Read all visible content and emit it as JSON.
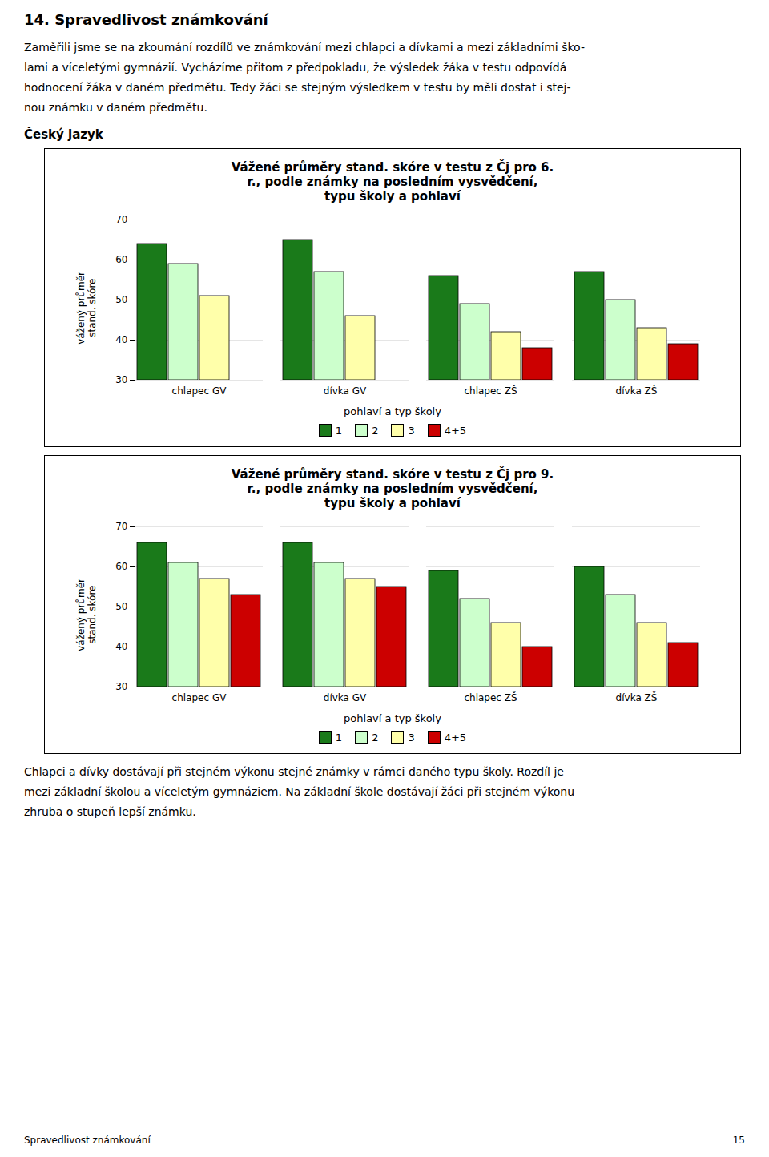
{
  "header_title": "14.  Spravedlivost známkování",
  "header_lines": [
    "Zaměřili jsme se na zkoumání rozdílů ve známkování mezi chlapci a dívkami a mezi základními ško-",
    "lami a víceletými gymnázií. Vycházíme přitom z předpokladu, že výsledek žáka v testu odpovídá",
    "hodnocení žáka v daném předmětu. Tedy žáci se stejným výsledkem v testu by měli dostat i stej-",
    "nou známku v daném předmětu."
  ],
  "section_label": "Český jazyk",
  "footer_lines": [
    "Chlapci a dívky dostávají při stejném výkonu stejné známky v rámci daného typu školy. Rozdíl je",
    "mezi základní školou a víceletým gymnáziem. Na základní škole dostávají žáci při stejném výkonu",
    "zhruba o stupeň lepší známku."
  ],
  "page_footer_left": "Spravedlivost známkování",
  "page_footer_right": "15",
  "chart_data": [
    {
      "type": "bar",
      "title": "Vážené průměry stand. skóre v testu z Čj pro 6.\nr., podle známky na posledním vysvědčení,\ntypu školy a pohlaví",
      "categories": [
        "chlapec GV",
        "dívka GV",
        "chlapec ZŠ",
        "dívka ZŠ"
      ],
      "xlabel": "pohlaví a typ školy",
      "ylabel": "vážený průměr\nstand. skóre",
      "series": [
        {
          "name": "1",
          "color": "#1a7a1a",
          "values": [
            64,
            65,
            56,
            57
          ]
        },
        {
          "name": "2",
          "color": "#ccffcc",
          "values": [
            59,
            57,
            49,
            50
          ]
        },
        {
          "name": "3",
          "color": "#ffffaa",
          "values": [
            51,
            46,
            42,
            43
          ]
        },
        {
          "name": "4+5",
          "color": "#cc0000",
          "values": [
            null,
            null,
            38,
            39
          ]
        }
      ],
      "ylim": [
        30,
        70
      ],
      "yticks": [
        30,
        40,
        50,
        60,
        70
      ],
      "grid": true,
      "legend": "bottom"
    },
    {
      "type": "bar",
      "title": "Vážené průměry stand. skóre v testu z Čj pro 9.\nr., podle známky na posledním vysvědčení,\ntypu školy a pohlaví",
      "categories": [
        "chlapec GV",
        "dívka GV",
        "chlapec ZŠ",
        "dívka ZŠ"
      ],
      "xlabel": "pohlaví a typ školy",
      "ylabel": "vážený průměr\nstand. skóre",
      "series": [
        {
          "name": "1",
          "color": "#1a7a1a",
          "values": [
            66,
            66,
            59,
            60
          ]
        },
        {
          "name": "2",
          "color": "#ccffcc",
          "values": [
            61,
            61,
            52,
            53
          ]
        },
        {
          "name": "3",
          "color": "#ffffaa",
          "values": [
            57,
            57,
            46,
            46
          ]
        },
        {
          "name": "4+5",
          "color": "#cc0000",
          "values": [
            53,
            55,
            40,
            41
          ]
        }
      ],
      "ylim": [
        30,
        70
      ],
      "yticks": [
        30,
        40,
        50,
        60,
        70
      ],
      "grid": true,
      "legend": "bottom"
    }
  ]
}
